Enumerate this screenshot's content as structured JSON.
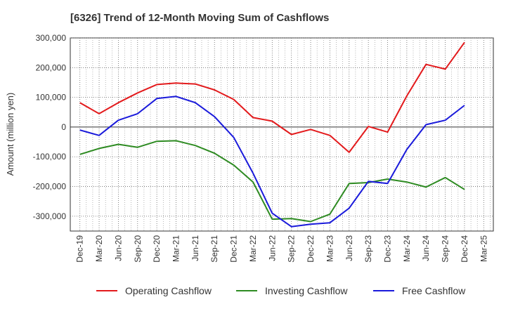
{
  "chart_data": {
    "type": "line",
    "title": "[6326]  Trend of 12-Month Moving Sum of Cashflows",
    "xlabel": "",
    "ylabel": "Amount (million yen)",
    "ylim": [
      -350000,
      300000
    ],
    "yticks": [
      300000,
      200000,
      100000,
      0,
      -100000,
      -200000,
      -300000
    ],
    "ytick_labels": [
      "300,000",
      "200,000",
      "100,000",
      "0",
      "-100,000",
      "-200,000",
      "-300,000"
    ],
    "grid": true,
    "legend_position": "bottom",
    "x": [
      "Dec-19",
      "Mar-20",
      "Jun-20",
      "Sep-20",
      "Dec-20",
      "Mar-21",
      "Jun-21",
      "Sep-21",
      "Dec-21",
      "Mar-22",
      "Jun-22",
      "Sep-22",
      "Dec-22",
      "Mar-23",
      "Jun-23",
      "Sep-23",
      "Dec-23",
      "Mar-24",
      "Jun-24",
      "Sep-24",
      "Dec-24",
      "Mar-25"
    ],
    "series": [
      {
        "name": "Operating Cashflow",
        "color": "#e31a1c",
        "values": [
          82000,
          45000,
          82000,
          115000,
          143000,
          148000,
          145000,
          125000,
          93000,
          32000,
          20000,
          -25000,
          -8000,
          -28000,
          -85000,
          2000,
          -17000,
          105000,
          211000,
          195000,
          285000,
          null
        ]
      },
      {
        "name": "Investing Cashflow",
        "color": "#2e8b22",
        "values": [
          -92000,
          -72000,
          -58000,
          -68000,
          -48000,
          -46000,
          -62000,
          -88000,
          -128000,
          -185000,
          -310000,
          -308000,
          -318000,
          -293000,
          -190000,
          -187000,
          -175000,
          -185000,
          -202000,
          -170000,
          -210000,
          null
        ]
      },
      {
        "name": "Free Cashflow",
        "color": "#1a1adb",
        "values": [
          -10000,
          -28000,
          23000,
          45000,
          96000,
          103000,
          82000,
          35000,
          -35000,
          -155000,
          -290000,
          -335000,
          -327000,
          -322000,
          -273000,
          -183000,
          -190000,
          -75000,
          8000,
          23000,
          73000,
          null
        ]
      }
    ]
  }
}
